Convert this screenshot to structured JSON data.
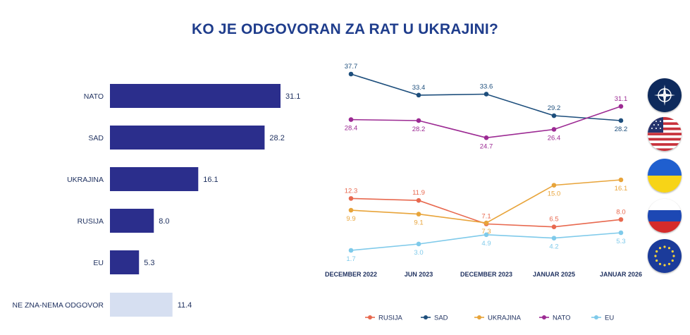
{
  "title": "KO JE ODGOVORAN ZA RAT U UKRAJINI?",
  "colors": {
    "title": "#1f3d8c",
    "bar_main": "#2b2e8c",
    "bar_light": "#d6dff1",
    "rusija": "#e8694f",
    "sad": "#1d4e7c",
    "ukrajina": "#e8a43a",
    "nato": "#9c2a93",
    "eu": "#7fcaea"
  },
  "chart_data": [
    {
      "type": "bar",
      "orientation": "horizontal",
      "title": "",
      "categories": [
        "NATO",
        "SAD",
        "UKRAJINA",
        "RUSIJA",
        "EU",
        "NE ZNA-NEMA ODGOVOR"
      ],
      "values": [
        31.1,
        28.2,
        16.1,
        8.0,
        5.3,
        11.4
      ],
      "labels": [
        "31.1",
        "28.2",
        "16.1",
        "8.0",
        "5.3",
        "11.4"
      ],
      "xlim": [
        0,
        35
      ]
    },
    {
      "type": "line",
      "title": "",
      "categories": [
        "DECEMBER 2022",
        "JUN 2023",
        "DECEMBER 2023",
        "JANUAR 2025",
        "JANUAR 2026"
      ],
      "ylim": [
        0,
        40
      ],
      "legend_position": "bottom",
      "series": [
        {
          "name": "SAD",
          "color_key": "sad",
          "values": [
            37.7,
            33.4,
            33.6,
            29.2,
            28.2
          ],
          "labels": [
            "37.7",
            "33.4",
            "33.6",
            "29.2",
            "28.2"
          ],
          "label_pos": [
            "above",
            "above",
            "above",
            "above",
            "below"
          ]
        },
        {
          "name": "NATO",
          "color_key": "nato",
          "values": [
            28.4,
            28.2,
            24.7,
            26.4,
            31.1
          ],
          "labels": [
            "28.4",
            "28.2",
            "24.7",
            "26.4",
            "31.1"
          ],
          "label_pos": [
            "below",
            "below",
            "below",
            "below",
            "above"
          ]
        },
        {
          "name": "RUSIJA",
          "color_key": "rusija",
          "values": [
            12.3,
            11.9,
            7.1,
            6.5,
            8.0
          ],
          "labels": [
            "12.3",
            "11.9",
            "7.1",
            "6.5",
            "8.0"
          ],
          "label_pos": [
            "above",
            "above",
            "above",
            "above",
            "above"
          ]
        },
        {
          "name": "UKRAJINA",
          "color_key": "ukrajina",
          "values": [
            9.9,
            9.1,
            7.3,
            15.0,
            16.1
          ],
          "labels": [
            "9.9",
            "9.1",
            "7.3",
            "15.0",
            "16.1"
          ],
          "label_pos": [
            "below",
            "below",
            "below",
            "below",
            "below"
          ]
        },
        {
          "name": "EU",
          "color_key": "eu",
          "values": [
            1.7,
            3.0,
            4.9,
            4.2,
            5.3
          ],
          "labels": [
            "1.7",
            "3.0",
            "4.9",
            "4.2",
            "5.3"
          ],
          "label_pos": [
            "below",
            "below",
            "below",
            "below",
            "below"
          ]
        }
      ],
      "legend_order": [
        "RUSIJA",
        "SAD",
        "UKRAJINA",
        "NATO",
        "EU"
      ]
    }
  ],
  "flags": [
    {
      "name": "NATO",
      "icon": "nato-flag-icon"
    },
    {
      "name": "SAD",
      "icon": "usa-flag-icon"
    },
    {
      "name": "UKRAJINA",
      "icon": "ukraine-flag-icon"
    },
    {
      "name": "RUSIJA",
      "icon": "russia-flag-icon"
    },
    {
      "name": "EU",
      "icon": "eu-flag-icon"
    }
  ]
}
